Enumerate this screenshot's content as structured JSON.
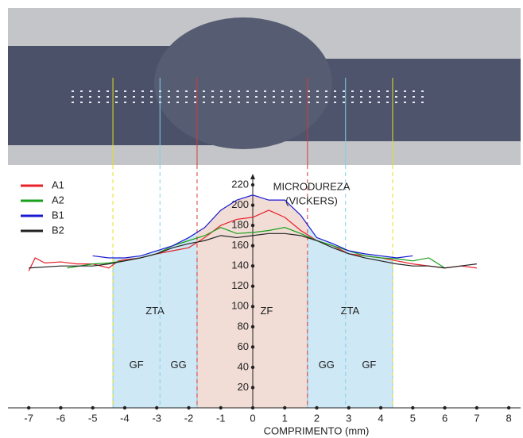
{
  "chart_data": {
    "type": "line",
    "ylabel": [
      "MICRODUREZA",
      "(VICKERS)"
    ],
    "xlabel": "COMPRIMENTO (mm)",
    "xlim": [
      -7.65,
      8.37
    ],
    "ylim": [
      0,
      220
    ],
    "xticks": [
      -7,
      -6,
      -5,
      -4,
      -3,
      -2,
      -1,
      0,
      1,
      2,
      3,
      4,
      5,
      6,
      7,
      8
    ],
    "yticks": [
      20,
      40,
      60,
      80,
      100,
      120,
      140,
      160,
      180,
      200,
      220
    ],
    "legend": "top-left",
    "zones": [
      {
        "label": "ZTA",
        "from": -4.37,
        "to": -1.74,
        "color": "#cfe8f6"
      },
      {
        "label": "ZF",
        "from": -1.74,
        "to": 1.71,
        "color": "#f1ddd6"
      },
      {
        "label": "ZTA",
        "from": 1.71,
        "to": 4.37,
        "color": "#cfe8f6"
      }
    ],
    "subzones": [
      {
        "label": "GF",
        "from": -4.37,
        "to": -2.9
      },
      {
        "label": "GG",
        "from": -2.9,
        "to": -1.74
      },
      {
        "label": "GG",
        "from": 1.71,
        "to": 2.9
      },
      {
        "label": "GF",
        "from": 2.9,
        "to": 4.37
      }
    ],
    "boundaries": [
      {
        "x": -4.37,
        "color": "#e6de20"
      },
      {
        "x": -2.9,
        "color": "#7fd0ea"
      },
      {
        "x": -1.74,
        "color": "#d83a3a"
      },
      {
        "x": 1.71,
        "color": "#d83a3a"
      },
      {
        "x": 2.9,
        "color": "#7fd0ea"
      },
      {
        "x": 4.37,
        "color": "#e6de20"
      }
    ],
    "series": [
      {
        "name": "A1",
        "color": "#e8202a",
        "x": [
          -7,
          -6.8,
          -6.5,
          -6,
          -5.5,
          -5,
          -4.5,
          -4.2,
          -4,
          -3.5,
          -3,
          -2.5,
          -2,
          -1.5,
          -1,
          -0.5,
          0,
          0.5,
          1,
          1.5,
          2,
          2.5,
          3,
          3.5,
          4,
          4.5,
          5,
          5.5,
          6,
          6.5,
          7
        ],
        "values": [
          135,
          148,
          143,
          144,
          142,
          142,
          138,
          145,
          146,
          148,
          152,
          155,
          158,
          168,
          180,
          186,
          188,
          195,
          188,
          175,
          165,
          160,
          152,
          150,
          148,
          145,
          142,
          140,
          138,
          140,
          138
        ]
      },
      {
        "name": "A2",
        "color": "#1aa01a",
        "x": [
          -5.8,
          -5,
          -4.5,
          -4,
          -3.5,
          -3,
          -2.5,
          -2,
          -1.5,
          -1,
          -0.5,
          0,
          0.5,
          1,
          1.5,
          2,
          2.5,
          3,
          3.5,
          4,
          4.5,
          5,
          5.5,
          6
        ],
        "values": [
          138,
          142,
          143,
          145,
          148,
          152,
          160,
          165,
          170,
          178,
          172,
          173,
          175,
          178,
          172,
          165,
          160,
          155,
          150,
          148,
          147,
          145,
          148,
          138
        ]
      },
      {
        "name": "B1",
        "color": "#1a1ad0",
        "x": [
          -5,
          -4.5,
          -4,
          -3.5,
          -3,
          -2.5,
          -2,
          -1.5,
          -1,
          -0.5,
          0,
          0.5,
          1,
          1.5,
          2,
          2.5,
          3,
          3.5,
          4,
          4.5,
          5
        ],
        "values": [
          150,
          148,
          148,
          150,
          155,
          160,
          168,
          178,
          195,
          205,
          210,
          205,
          205,
          190,
          168,
          162,
          155,
          152,
          150,
          148,
          150
        ]
      },
      {
        "name": "B2",
        "color": "#222222",
        "x": [
          -7,
          -6,
          -5,
          -4.5,
          -4,
          -3.5,
          -3,
          -2.5,
          -2,
          -1.5,
          -1,
          -0.5,
          0,
          0.5,
          1,
          1.5,
          2,
          2.5,
          3,
          3.5,
          4,
          4.5,
          5,
          5.5,
          6,
          6.5,
          7
        ],
        "values": [
          138,
          140,
          140,
          142,
          145,
          148,
          152,
          158,
          162,
          165,
          170,
          168,
          170,
          172,
          172,
          170,
          165,
          158,
          152,
          148,
          145,
          142,
          140,
          140,
          138,
          140,
          142
        ]
      }
    ]
  }
}
